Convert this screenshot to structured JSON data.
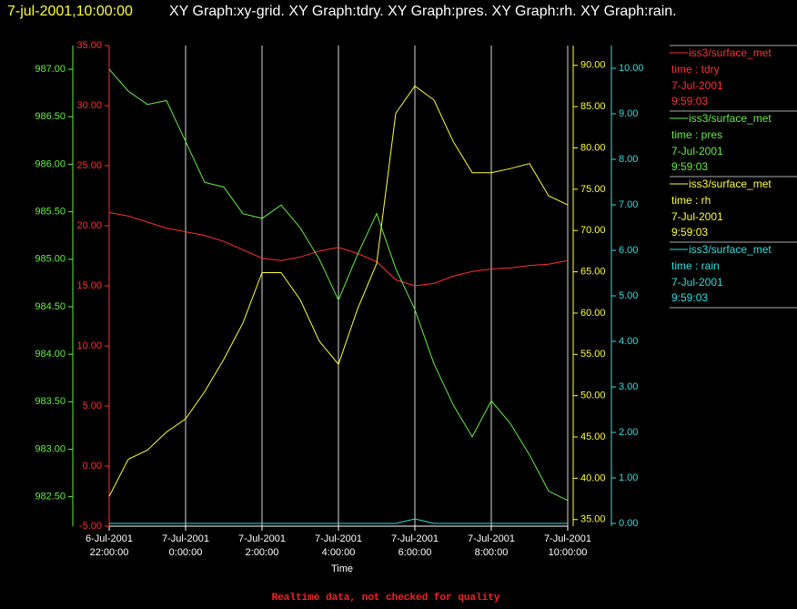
{
  "header": {
    "timestamp": "7-jul-2001,10:00:00",
    "graphs": "XY Graph:xy-grid.  XY Graph:tdry.  XY Graph:pres.  XY Graph:rh.  XY Graph:rain."
  },
  "footer": "Realtime data, not checked for quality",
  "chart_data": {
    "type": "line",
    "xlabel": "Time",
    "xlim": [
      "2001-07-06T22:00",
      "2001-07-07T10:00"
    ],
    "xticks": [
      {
        "value": "2001-07-06T22:00",
        "label": [
          "6-Jul-2001",
          "22:00:00"
        ]
      },
      {
        "value": "2001-07-07T00:00",
        "label": [
          "7-Jul-2001",
          "0:00:00"
        ]
      },
      {
        "value": "2001-07-07T02:00",
        "label": [
          "7-Jul-2001",
          "2:00:00"
        ]
      },
      {
        "value": "2001-07-07T04:00",
        "label": [
          "7-Jul-2001",
          "4:00:00"
        ]
      },
      {
        "value": "2001-07-07T06:00",
        "label": [
          "7-Jul-2001",
          "6:00:00"
        ]
      },
      {
        "value": "2001-07-07T08:00",
        "label": [
          "7-Jul-2001",
          "8:00:00"
        ]
      },
      {
        "value": "2001-07-07T10:00",
        "label": [
          "7-Jul-2001",
          "10:00:00"
        ]
      }
    ],
    "grid": true,
    "x": [
      "2001-07-06T22:00",
      "2001-07-06T22:30",
      "2001-07-06T23:00",
      "2001-07-06T23:30",
      "2001-07-07T00:00",
      "2001-07-07T00:30",
      "2001-07-07T01:00",
      "2001-07-07T01:30",
      "2001-07-07T02:00",
      "2001-07-07T02:30",
      "2001-07-07T03:00",
      "2001-07-07T03:30",
      "2001-07-07T04:00",
      "2001-07-07T04:30",
      "2001-07-07T05:00",
      "2001-07-07T05:30",
      "2001-07-07T06:00",
      "2001-07-07T06:30",
      "2001-07-07T07:00",
      "2001-07-07T07:30",
      "2001-07-07T08:00",
      "2001-07-07T08:30",
      "2001-07-07T09:00",
      "2001-07-07T09:30",
      "2001-07-07T10:00"
    ],
    "series": [
      {
        "name": "iss3/surface_met",
        "field": "time : tdry",
        "date": "7-Jul-2001",
        "time": "9:59:03",
        "color": "#ff3030",
        "ylim": [
          -5,
          35
        ],
        "yticks": [
          {
            "value": 35,
            "label": "35.00"
          },
          {
            "value": 30,
            "label": "30.00"
          },
          {
            "value": 25,
            "label": "25.00"
          },
          {
            "value": 20,
            "label": "20.00"
          },
          {
            "value": 15,
            "label": "15.00"
          },
          {
            "value": 10,
            "label": "10.00"
          },
          {
            "value": 5,
            "label": "5.00"
          },
          {
            "value": 0,
            "label": "0.00"
          },
          {
            "value": -5,
            "label": "-5.00"
          }
        ],
        "values": [
          21.1,
          20.8,
          20.3,
          19.8,
          19.5,
          19.2,
          18.7,
          18.0,
          17.3,
          17.1,
          17.4,
          17.9,
          18.2,
          17.7,
          17.0,
          15.5,
          15.0,
          15.2,
          15.8,
          16.2,
          16.4,
          16.5,
          16.7,
          16.8,
          17.1
        ]
      },
      {
        "name": "iss3/surface_met",
        "field": "time : pres",
        "date": "7-Jul-2001",
        "time": "9:59:03",
        "color": "#66ee44",
        "ylim": [
          982.19,
          987.25
        ],
        "yticks": [
          {
            "value": 987,
            "label": "987.00"
          },
          {
            "value": 986.5,
            "label": "986.50"
          },
          {
            "value": 986,
            "label": "986.00"
          },
          {
            "value": 985.5,
            "label": "985.50"
          },
          {
            "value": 985,
            "label": "985.00"
          },
          {
            "value": 984.5,
            "label": "984.50"
          },
          {
            "value": 984,
            "label": "984.00"
          },
          {
            "value": 983.5,
            "label": "983.50"
          },
          {
            "value": 983,
            "label": "983.00"
          },
          {
            "value": 982.5,
            "label": "982.50"
          }
        ],
        "values": [
          987.0,
          986.77,
          986.63,
          986.67,
          986.24,
          985.81,
          985.76,
          985.48,
          985.43,
          985.57,
          985.33,
          985.0,
          984.57,
          985.05,
          985.48,
          984.9,
          984.47,
          983.9,
          983.47,
          983.13,
          983.51,
          983.27,
          982.94,
          982.56,
          982.46
        ]
      },
      {
        "name": "iss3/surface_met",
        "field": "time : rh",
        "date": "7-Jul-2001",
        "time": "9:59:03",
        "color": "#ffff33",
        "ylim": [
          34.2,
          92.4
        ],
        "yticks": [
          {
            "value": 90,
            "label": "90.00"
          },
          {
            "value": 85,
            "label": "85.00"
          },
          {
            "value": 80,
            "label": "80.00"
          },
          {
            "value": 75,
            "label": "75.00"
          },
          {
            "value": 70,
            "label": "70.00"
          },
          {
            "value": 65,
            "label": "65.00"
          },
          {
            "value": 60,
            "label": "60.00"
          },
          {
            "value": 55,
            "label": "55.00"
          },
          {
            "value": 50,
            "label": "50.00"
          },
          {
            "value": 45,
            "label": "45.00"
          },
          {
            "value": 40,
            "label": "40.00"
          },
          {
            "value": 35,
            "label": "35.00"
          }
        ],
        "values": [
          37.8,
          42.3,
          43.4,
          45.6,
          47.2,
          50.5,
          54.4,
          58.8,
          64.9,
          64.9,
          61.6,
          56.6,
          53.8,
          60.5,
          66.0,
          84.2,
          87.5,
          85.8,
          80.8,
          77.0,
          77.0,
          77.5,
          78.1,
          74.2,
          73.1
        ]
      },
      {
        "name": "iss3/surface_met",
        "field": "time : rain",
        "date": "7-Jul-2001",
        "time": "9:59:03",
        "color": "#33dddd",
        "ylim": [
          -0.06,
          10.5
        ],
        "yticks": [
          {
            "value": 10,
            "label": "10.00"
          },
          {
            "value": 9,
            "label": "9.00"
          },
          {
            "value": 8,
            "label": "8.00"
          },
          {
            "value": 7,
            "label": "7.00"
          },
          {
            "value": 6,
            "label": "6.00"
          },
          {
            "value": 5,
            "label": "5.00"
          },
          {
            "value": 4,
            "label": "4.00"
          },
          {
            "value": 3,
            "label": "3.00"
          },
          {
            "value": 2,
            "label": "2.00"
          },
          {
            "value": 1,
            "label": "1.00"
          },
          {
            "value": 0,
            "label": "0.00"
          }
        ],
        "values": [
          0,
          0,
          0,
          0,
          0,
          0,
          0,
          0,
          0,
          0,
          0,
          0,
          0,
          0,
          0,
          0,
          0.1,
          0,
          0,
          0,
          0,
          0,
          0,
          0,
          0
        ]
      }
    ]
  }
}
